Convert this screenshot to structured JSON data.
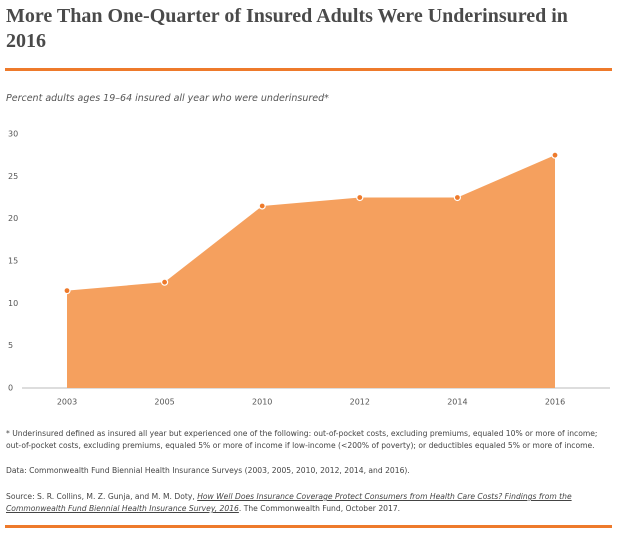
{
  "chart_data": {
    "type": "area",
    "title": "More Than One-Quarter of Insured Adults Were Underinsured in 2016",
    "subtitle": "Percent adults ages 19–64 insured all year who were underinsured*",
    "categories": [
      "2003",
      "2005",
      "2010",
      "2012",
      "2014",
      "2016"
    ],
    "values": [
      11.5,
      12.5,
      21.5,
      22.5,
      22.5,
      27.5
    ],
    "color": "#f5a05e",
    "ylim": [
      0,
      30
    ],
    "yticks": [
      0,
      5,
      10,
      15,
      20,
      25,
      30
    ],
    "notes": {
      "definition": "* Underinsured defined as insured all year but experienced one of the following: out-of-pocket costs, excluding premiums, equaled 10% or more of income; out-of-pocket costs, excluding premiums, equaled 5% or more of income if low-income (<200% of poverty); or deductibles equaled 5% or more of income.",
      "data": "Data: Commonwealth Fund Biennial Health Insurance Surveys (2003, 2005, 2010, 2012, 2014, and 2016).",
      "source_prefix": "Source: S. R. Collins, M. Z. Gunja, and M. M. Doty,",
      "source_link": "How Well Does Insurance Coverage Protect Consumers from Health Care Costs? Findings from the Commonwealth Fund Biennial Health Insurance Survey, 2016",
      "source_suffix": ". The Commonwealth Fund, October 2017."
    }
  }
}
